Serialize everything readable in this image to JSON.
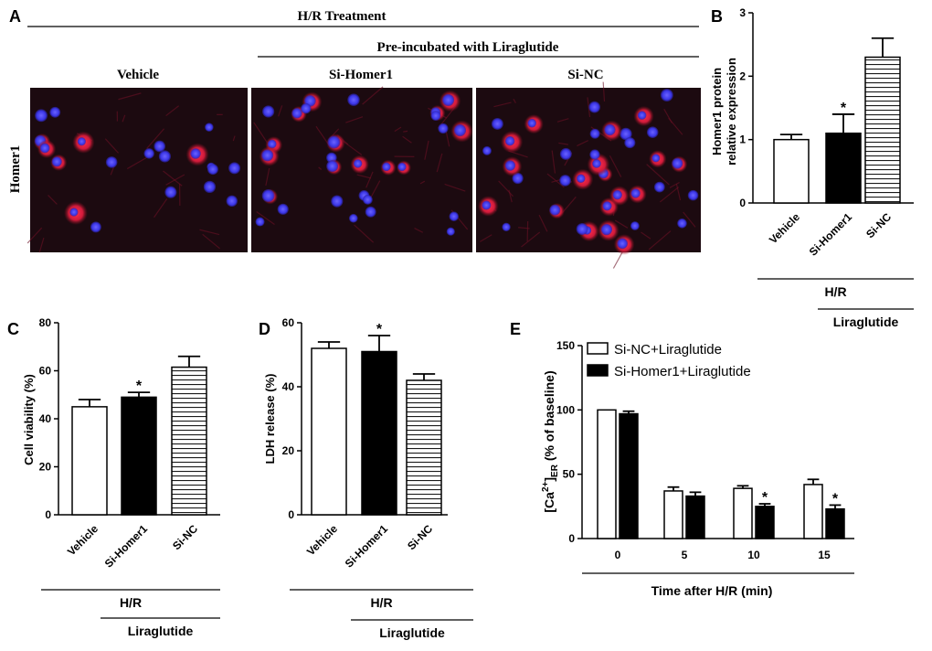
{
  "panel_a": {
    "letter": "A",
    "treatment_title": "H/R Treatment",
    "preincubation_title": "Pre-incubated with Liraglutide",
    "column_titles": [
      "Vehicle",
      "Si-Homer1",
      "Si-NC"
    ],
    "row_label": "Homer1",
    "colors": {
      "background": "#1c0a10",
      "nucleus": "#3a35e6",
      "stain": "#d81c3c"
    }
  },
  "chart_data": [
    {
      "panel": "B",
      "type": "bar",
      "categories": [
        "Vehicle",
        "Si-Homer1",
        "Si-NC"
      ],
      "values": [
        1.0,
        1.1,
        2.3
      ],
      "errors": [
        0.08,
        0.3,
        0.3
      ],
      "fills": [
        "white",
        "black",
        "hstripes"
      ],
      "significance": [
        "",
        "*",
        ""
      ],
      "ylabel_lines": [
        "Homer1 protein",
        "relative expression"
      ],
      "ylim": [
        0,
        3
      ],
      "yticks": [
        0,
        1,
        2,
        3
      ],
      "group_labels": [
        "H/R",
        "Liraglutide"
      ]
    },
    {
      "panel": "C",
      "type": "bar",
      "categories": [
        "Vehicle",
        "Si-Homer1",
        "Si-NC"
      ],
      "values": [
        45,
        49,
        61.5
      ],
      "errors": [
        3,
        2,
        4.5
      ],
      "fills": [
        "white",
        "black",
        "hstripes"
      ],
      "significance": [
        "",
        "*",
        ""
      ],
      "ylabel": "Cell viability (%)",
      "ylim": [
        0,
        80
      ],
      "yticks": [
        0,
        20,
        40,
        60,
        80
      ],
      "group_labels": [
        "H/R",
        "Liraglutide"
      ]
    },
    {
      "panel": "D",
      "type": "bar",
      "categories": [
        "Vehicle",
        "Si-Homer1",
        "Si-NC"
      ],
      "values": [
        52,
        51,
        42
      ],
      "errors": [
        2,
        5,
        2
      ],
      "fills": [
        "white",
        "black",
        "hstripes"
      ],
      "significance": [
        "",
        "*",
        ""
      ],
      "ylabel": "LDH release (%)",
      "ylim": [
        0,
        60
      ],
      "yticks": [
        0,
        20,
        40,
        60
      ],
      "group_labels": [
        "H/R",
        "Liraglutide"
      ]
    },
    {
      "panel": "E",
      "type": "bar",
      "categories": [
        "0",
        "5",
        "10",
        "15"
      ],
      "series": [
        {
          "name": "Si-NC+Liraglutide",
          "fill": "white",
          "values": [
            100,
            37,
            39,
            42
          ],
          "errors": [
            0,
            3,
            2,
            4
          ],
          "significance": [
            "",
            "",
            "",
            ""
          ]
        },
        {
          "name": "Si-Homer1+Liraglutide",
          "fill": "black",
          "values": [
            97,
            33,
            25,
            23
          ],
          "errors": [
            2,
            3,
            2,
            3
          ],
          "significance": [
            "",
            "",
            "*",
            "*"
          ]
        }
      ],
      "ylabel": "[Ca2+]ER (% of baseline)",
      "ylabel_parts": [
        "[Ca",
        "2+",
        "]",
        "ER",
        " (% of baseline)"
      ],
      "xlabel": "Time after H/R (min)",
      "ylim": [
        0,
        150
      ],
      "yticks": [
        0,
        50,
        100,
        150
      ],
      "legend_position": "top-left"
    }
  ]
}
